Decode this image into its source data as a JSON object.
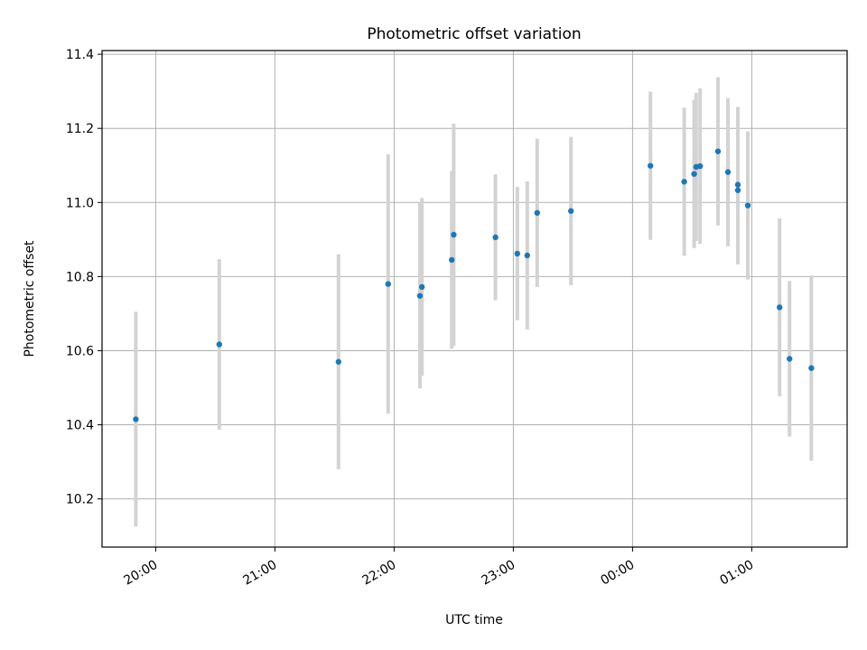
{
  "chart_data": {
    "type": "scatter",
    "title": "Photometric offset variation",
    "xlabel": "UTC time",
    "ylabel": "Photometric offset",
    "x_ticks": [
      "20:00",
      "21:00",
      "22:00",
      "23:00",
      "00:00",
      "01:00"
    ],
    "y_ticks": [
      "10.2",
      "10.4",
      "10.6",
      "10.8",
      "11.0",
      "11.2",
      "11.4"
    ],
    "xlim": [
      "19:33",
      "01:48"
    ],
    "ylim": [
      10.07,
      11.41
    ],
    "grid": true,
    "colors": {
      "points": "#1f77b4",
      "errorbars": "#d3d3d3",
      "grid": "#b0b0b0"
    },
    "points": [
      {
        "time": "19:50",
        "y": 10.415,
        "err": 0.29
      },
      {
        "time": "20:32",
        "y": 10.617,
        "err": 0.23
      },
      {
        "time": "21:32",
        "y": 10.57,
        "err": 0.29
      },
      {
        "time": "21:57",
        "y": 10.78,
        "err": 0.35
      },
      {
        "time": "22:13",
        "y": 10.748,
        "err": 0.25
      },
      {
        "time": "22:14",
        "y": 10.772,
        "err": 0.24
      },
      {
        "time": "22:29",
        "y": 10.845,
        "err": 0.24
      },
      {
        "time": "22:30",
        "y": 10.913,
        "err": 0.3
      },
      {
        "time": "22:51",
        "y": 10.906,
        "err": 0.17
      },
      {
        "time": "23:02",
        "y": 10.862,
        "err": 0.18
      },
      {
        "time": "23:07",
        "y": 10.857,
        "err": 0.2
      },
      {
        "time": "23:12",
        "y": 10.972,
        "err": 0.2
      },
      {
        "time": "23:29",
        "y": 10.977,
        "err": 0.2
      },
      {
        "time": "00:09",
        "y": 11.099,
        "err": 0.2
      },
      {
        "time": "00:26",
        "y": 11.056,
        "err": 0.2
      },
      {
        "time": "00:31",
        "y": 11.077,
        "err": 0.2
      },
      {
        "time": "00:32",
        "y": 11.096,
        "err": 0.2
      },
      {
        "time": "00:34",
        "y": 11.098,
        "err": 0.21
      },
      {
        "time": "00:43",
        "y": 11.138,
        "err": 0.2
      },
      {
        "time": "00:48",
        "y": 11.082,
        "err": 0.2
      },
      {
        "time": "00:53",
        "y": 11.048,
        "err": 0.21
      },
      {
        "time": "00:53",
        "y": 11.033,
        "err": 0.2
      },
      {
        "time": "00:58",
        "y": 10.992,
        "err": 0.2
      },
      {
        "time": "01:14",
        "y": 10.717,
        "err": 0.24
      },
      {
        "time": "01:19",
        "y": 10.578,
        "err": 0.21
      },
      {
        "time": "01:30",
        "y": 10.553,
        "err": 0.25
      }
    ]
  }
}
